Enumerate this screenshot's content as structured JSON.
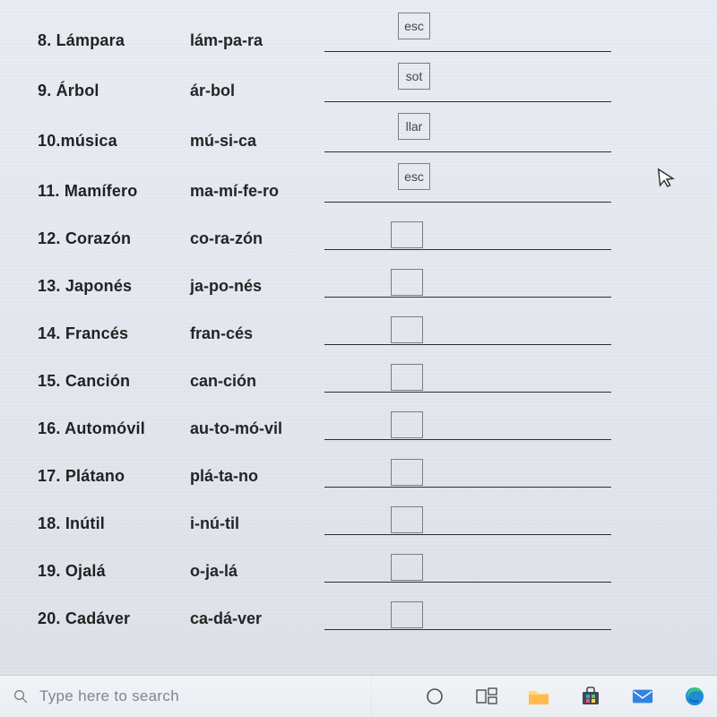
{
  "worksheet": {
    "rows": [
      {
        "num": "8.",
        "word": "Lámpara",
        "syll": "lám-pa-ra",
        "input": "esc",
        "boxStyle": "up"
      },
      {
        "num": "9.",
        "word": "Árbol",
        "syll": "ár-bol",
        "input": "sot",
        "boxStyle": "up"
      },
      {
        "num": "10.",
        "word": "música",
        "syll": "mú-si-ca",
        "input": "llar",
        "boxStyle": "up"
      },
      {
        "num": "11.",
        "word": "Mamífero",
        "syll": "ma-mí-fe-ro",
        "input": "esc",
        "boxStyle": "up"
      },
      {
        "num": "12.",
        "word": "Corazón",
        "syll": "co-ra-zón",
        "input": "",
        "boxStyle": ""
      },
      {
        "num": "13.",
        "word": "Japonés",
        "syll": "ja-po-nés",
        "input": "",
        "boxStyle": ""
      },
      {
        "num": "14.",
        "word": "Francés",
        "syll": "fran-cés",
        "input": "",
        "boxStyle": ""
      },
      {
        "num": "15.",
        "word": "Canción",
        "syll": "can-ción",
        "input": "",
        "boxStyle": ""
      },
      {
        "num": "16.",
        "word": "Automóvil",
        "syll": "au-to-mó-vil",
        "input": "",
        "boxStyle": ""
      },
      {
        "num": "17.",
        "word": "Plátano",
        "syll": "plá-ta-no",
        "input": "",
        "boxStyle": ""
      },
      {
        "num": "18.",
        "word": "Inútil",
        "syll": "i-nú-til",
        "input": "",
        "boxStyle": ""
      },
      {
        "num": "19.",
        "word": "Ojalá",
        "syll": "o-ja-lá",
        "input": "",
        "boxStyle": ""
      },
      {
        "num": "20.",
        "word": "Cadáver",
        "syll": "ca-dá-ver",
        "input": "",
        "boxStyle": ""
      }
    ]
  },
  "taskbar": {
    "search_placeholder": "Type here to search"
  },
  "colors": {
    "folder_top": "#ffd66b",
    "folder_bot": "#ffb84a",
    "store1": "#2aa3df",
    "store2": "#ff4f6e",
    "store3": "#57c357",
    "store4": "#ffd23f",
    "mail": "#2f7fe0",
    "edge_outer": "#39c180",
    "edge_inner": "#1c88d6"
  }
}
